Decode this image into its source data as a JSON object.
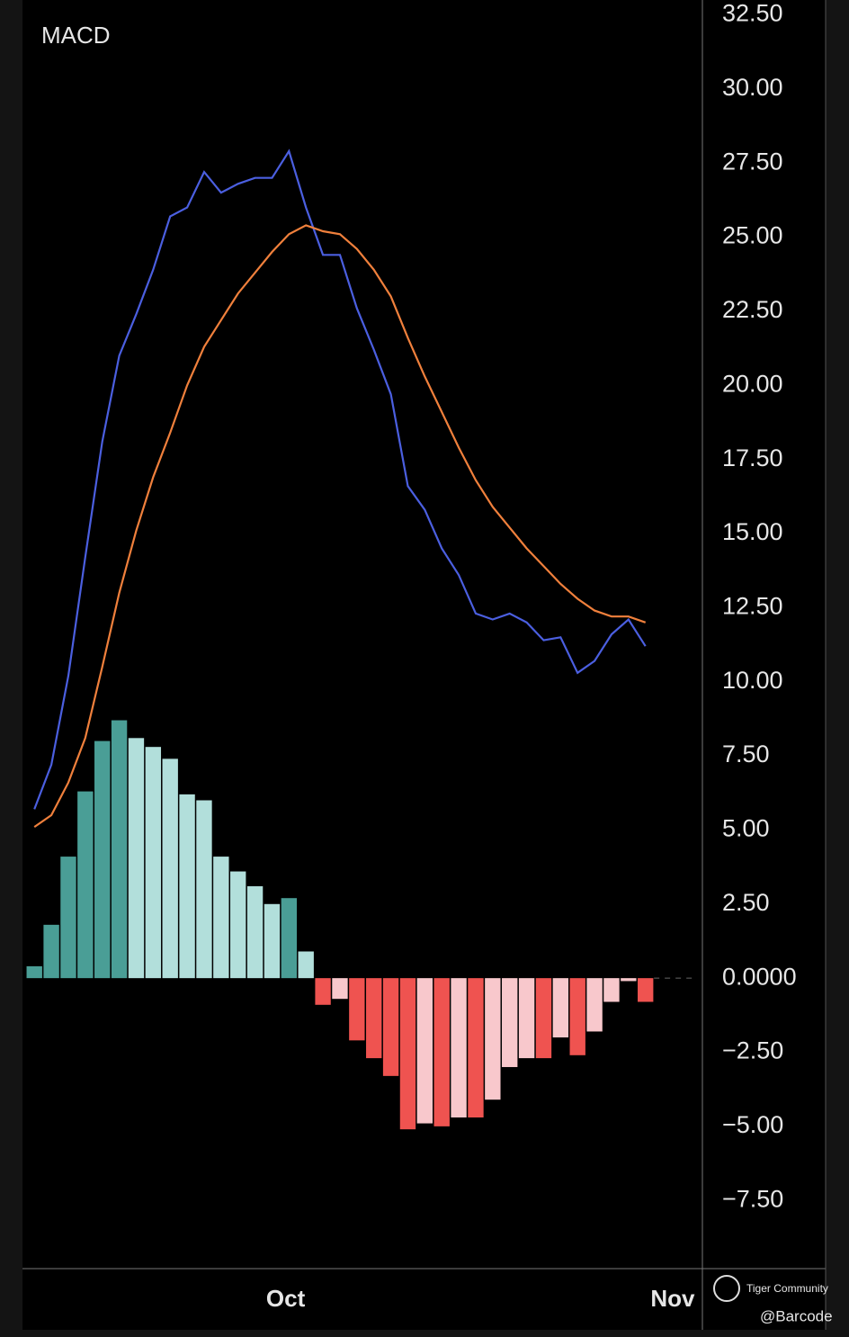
{
  "chart_data": {
    "type": "macd",
    "title": "MACD",
    "xlim": [
      -0.7,
      39.3
    ],
    "xticks": [
      {
        "value": 14.8,
        "label": "Oct"
      },
      {
        "value": 37.6,
        "label": "Nov"
      }
    ],
    "ylim": [
      -9.8,
      33.0
    ],
    "yticks": [
      {
        "value": 32.5,
        "label": "32.50"
      },
      {
        "value": 30,
        "label": "30.00"
      },
      {
        "value": 27.5,
        "label": "27.50"
      },
      {
        "value": 25,
        "label": "25.00"
      },
      {
        "value": 22.5,
        "label": "22.50"
      },
      {
        "value": 20,
        "label": "20.00"
      },
      {
        "value": 17.5,
        "label": "17.50"
      },
      {
        "value": 15,
        "label": "15.00"
      },
      {
        "value": 12.5,
        "label": "12.50"
      },
      {
        "value": 10,
        "label": "10.00"
      },
      {
        "value": 7.5,
        "label": "7.50"
      },
      {
        "value": 5,
        "label": "5.00"
      },
      {
        "value": 2.5,
        "label": "2.50"
      },
      {
        "value": 0,
        "label": "0.0000"
      },
      {
        "value": -2.5,
        "label": "−2.50"
      },
      {
        "value": -5,
        "label": "−5.00"
      },
      {
        "value": -7.5,
        "label": "−7.50"
      }
    ],
    "histogram": {
      "values": [
        0.4,
        1.8,
        4.1,
        6.3,
        8.0,
        8.7,
        8.1,
        7.8,
        7.4,
        6.2,
        6.0,
        4.1,
        3.6,
        3.1,
        2.5,
        2.7,
        0.9,
        -0.9,
        -0.7,
        -2.1,
        -2.7,
        -3.3,
        -5.1,
        -4.9,
        -5.0,
        -4.7,
        -4.7,
        -4.1,
        -3.0,
        -2.7,
        -2.7,
        -2.0,
        -2.6,
        -1.8,
        -0.8,
        -0.1,
        -0.8
      ],
      "colors": [
        "#4a9e96",
        "#4a9e96",
        "#4a9e96",
        "#4a9e96",
        "#4a9e96",
        "#4a9e96",
        "#b2dfdb",
        "#b2dfdb",
        "#b2dfdb",
        "#b2dfdb",
        "#b2dfdb",
        "#b2dfdb",
        "#b2dfdb",
        "#b2dfdb",
        "#b2dfdb",
        "#4a9e96",
        "#b2dfdb",
        "#ef5350",
        "#f8c8cc",
        "#ef5350",
        "#ef5350",
        "#ef5350",
        "#ef5350",
        "#f8c8cc",
        "#ef5350",
        "#f8c8cc",
        "#ef5350",
        "#f8c8cc",
        "#f8c8cc",
        "#f8c8cc",
        "#ef5350",
        "#f8c8cc",
        "#ef5350",
        "#f8c8cc",
        "#f8c8cc",
        "#f8c8cc",
        "#ef5350"
      ]
    },
    "series": [
      {
        "color": "#4b5fe0",
        "values": [
          5.7,
          7.2,
          10.2,
          14.2,
          18.1,
          21.0,
          22.4,
          23.9,
          25.7,
          26.0,
          27.2,
          26.5,
          26.8,
          27.0,
          27.0,
          27.9,
          26.0,
          24.4,
          24.4,
          22.6,
          21.2,
          19.7,
          16.6,
          15.8,
          14.5,
          13.6,
          12.3,
          12.1,
          12.3,
          12.0,
          11.4,
          11.5,
          10.3,
          10.7,
          11.6,
          12.1,
          11.2
        ]
      },
      {
        "color": "#f0803c",
        "values": [
          5.1,
          5.5,
          6.6,
          8.1,
          10.5,
          13.0,
          15.1,
          16.9,
          18.4,
          20.0,
          21.3,
          22.2,
          23.1,
          23.8,
          24.5,
          25.1,
          25.4,
          25.2,
          25.1,
          24.6,
          23.9,
          23.0,
          21.6,
          20.3,
          19.1,
          17.9,
          16.8,
          15.9,
          15.2,
          14.5,
          13.9,
          13.3,
          12.8,
          12.4,
          12.2,
          12.2,
          12.0
        ]
      }
    ]
  },
  "watermark": {
    "brand": "Tiger Community",
    "user": "@Barcode"
  }
}
